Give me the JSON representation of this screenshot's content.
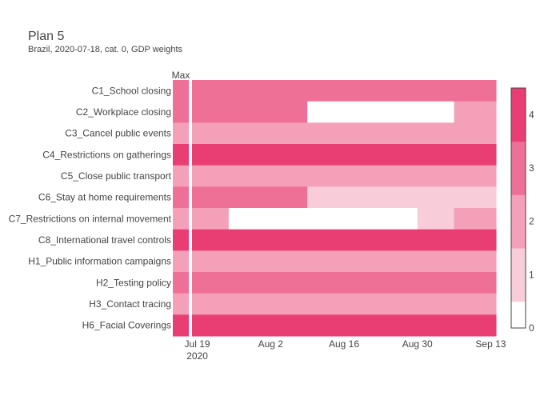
{
  "chart_data": {
    "type": "heatmap",
    "title": "Plan 5",
    "subtitle": "Brazil, 2020-07-18, cat. 0, GDP weights",
    "max_column_label": "Max",
    "rows": [
      "C1_School closing",
      "C2_Workplace closing",
      "C3_Cancel public events",
      "C4_Restrictions on gatherings",
      "C5_Close public transport",
      "C6_Stay at home requirements",
      "C7_Restrictions on internal movement",
      "C8_International travel controls",
      "H1_Public information campaigns",
      "H2_Testing policy",
      "H3_Contact tracing",
      "H6_Facial Coverings"
    ],
    "max_values": [
      3,
      3,
      2,
      4,
      2,
      3,
      2,
      4,
      2,
      3,
      2,
      4
    ],
    "x_start": "2020-07-18",
    "x_end": "2020-09-14",
    "x_ticks": [
      {
        "date": "2020-07-19",
        "label": "Jul 19",
        "sublabel": "2020"
      },
      {
        "date": "2020-08-02",
        "label": "Aug 2",
        "sublabel": ""
      },
      {
        "date": "2020-08-16",
        "label": "Aug 16",
        "sublabel": ""
      },
      {
        "date": "2020-08-30",
        "label": "Aug 30",
        "sublabel": ""
      },
      {
        "date": "2020-09-13",
        "label": "Sep 13",
        "sublabel": ""
      }
    ],
    "segments": [
      [
        {
          "from": "2020-07-18",
          "to": "2020-09-14",
          "value": 3
        }
      ],
      [
        {
          "from": "2020-07-18",
          "to": "2020-08-09",
          "value": 3
        },
        {
          "from": "2020-08-09",
          "to": "2020-09-06",
          "value": 0
        },
        {
          "from": "2020-09-06",
          "to": "2020-09-14",
          "value": 2
        }
      ],
      [
        {
          "from": "2020-07-18",
          "to": "2020-09-14",
          "value": 2
        }
      ],
      [
        {
          "from": "2020-07-18",
          "to": "2020-09-14",
          "value": 4
        }
      ],
      [
        {
          "from": "2020-07-18",
          "to": "2020-09-14",
          "value": 2
        }
      ],
      [
        {
          "from": "2020-07-18",
          "to": "2020-08-09",
          "value": 3
        },
        {
          "from": "2020-08-09",
          "to": "2020-09-14",
          "value": 1
        }
      ],
      [
        {
          "from": "2020-07-18",
          "to": "2020-07-25",
          "value": 2
        },
        {
          "from": "2020-07-25",
          "to": "2020-08-30",
          "value": 0
        },
        {
          "from": "2020-08-30",
          "to": "2020-09-06",
          "value": 1
        },
        {
          "from": "2020-09-06",
          "to": "2020-09-14",
          "value": 2
        }
      ],
      [
        {
          "from": "2020-07-18",
          "to": "2020-09-14",
          "value": 4
        }
      ],
      [
        {
          "from": "2020-07-18",
          "to": "2020-09-14",
          "value": 2
        }
      ],
      [
        {
          "from": "2020-07-18",
          "to": "2020-09-14",
          "value": 3
        }
      ],
      [
        {
          "from": "2020-07-18",
          "to": "2020-09-14",
          "value": 2
        }
      ],
      [
        {
          "from": "2020-07-18",
          "to": "2020-09-14",
          "value": 4
        }
      ]
    ],
    "colorscale": {
      "min": 0,
      "max": 4.5,
      "ticks": [
        0,
        1,
        2,
        3,
        4
      ],
      "bands": [
        {
          "from": 0,
          "to": 0.5,
          "color": "#ffffff"
        },
        {
          "from": 0.5,
          "to": 1.5,
          "color": "#f9ccd9"
        },
        {
          "from": 1.5,
          "to": 2.5,
          "color": "#f4a0b8"
        },
        {
          "from": 2.5,
          "to": 3.5,
          "color": "#ee7096"
        },
        {
          "from": 3.5,
          "to": 4.5,
          "color": "#e83e74"
        }
      ]
    }
  }
}
